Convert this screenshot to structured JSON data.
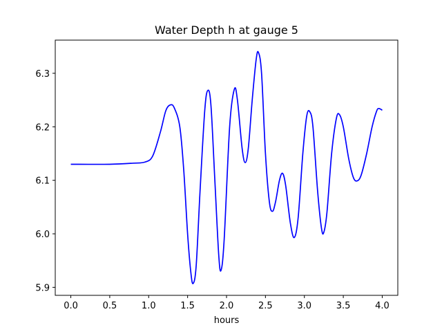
{
  "chart_data": {
    "type": "line",
    "title": "Water Depth h at gauge 5",
    "xlabel": "hours",
    "ylabel": "",
    "xlim": [
      -0.2,
      4.2
    ],
    "ylim": [
      5.885,
      6.362
    ],
    "xticks": [
      0.0,
      0.5,
      1.0,
      1.5,
      2.0,
      2.5,
      3.0,
      3.5,
      4.0
    ],
    "xtick_labels": [
      "0.0",
      "0.5",
      "1.0",
      "1.5",
      "2.0",
      "2.5",
      "3.0",
      "3.5",
      "4.0"
    ],
    "yticks": [
      5.9,
      6.0,
      6.1,
      6.2,
      6.3
    ],
    "ytick_labels": [
      "5.9",
      "6.0",
      "6.1",
      "6.2",
      "6.3"
    ],
    "grid": false,
    "legend": "none",
    "series": [
      {
        "color": "#0000ff",
        "points": [
          [
            0.0,
            6.13
          ],
          [
            0.5,
            6.13
          ],
          [
            0.8,
            6.132
          ],
          [
            0.95,
            6.134
          ],
          [
            1.05,
            6.145
          ],
          [
            1.15,
            6.19
          ],
          [
            1.22,
            6.23
          ],
          [
            1.28,
            6.241
          ],
          [
            1.33,
            6.235
          ],
          [
            1.4,
            6.2
          ],
          [
            1.45,
            6.12
          ],
          [
            1.5,
            6.0
          ],
          [
            1.54,
            5.93
          ],
          [
            1.57,
            5.907
          ],
          [
            1.61,
            5.94
          ],
          [
            1.66,
            6.08
          ],
          [
            1.72,
            6.23
          ],
          [
            1.76,
            6.268
          ],
          [
            1.8,
            6.24
          ],
          [
            1.85,
            6.1
          ],
          [
            1.9,
            5.96
          ],
          [
            1.93,
            5.932
          ],
          [
            1.97,
            5.99
          ],
          [
            2.04,
            6.2
          ],
          [
            2.1,
            6.27
          ],
          [
            2.14,
            6.25
          ],
          [
            2.2,
            6.16
          ],
          [
            2.24,
            6.133
          ],
          [
            2.28,
            6.16
          ],
          [
            2.33,
            6.25
          ],
          [
            2.38,
            6.325
          ],
          [
            2.41,
            6.339
          ],
          [
            2.45,
            6.3
          ],
          [
            2.5,
            6.15
          ],
          [
            2.55,
            6.06
          ],
          [
            2.59,
            6.042
          ],
          [
            2.63,
            6.06
          ],
          [
            2.68,
            6.1
          ],
          [
            2.72,
            6.113
          ],
          [
            2.76,
            6.09
          ],
          [
            2.82,
            6.02
          ],
          [
            2.87,
            5.993
          ],
          [
            2.92,
            6.03
          ],
          [
            2.98,
            6.15
          ],
          [
            3.03,
            6.22
          ],
          [
            3.07,
            6.228
          ],
          [
            3.11,
            6.2
          ],
          [
            3.17,
            6.08
          ],
          [
            3.22,
            6.01
          ],
          [
            3.25,
            6.003
          ],
          [
            3.29,
            6.04
          ],
          [
            3.35,
            6.15
          ],
          [
            3.41,
            6.215
          ],
          [
            3.45,
            6.223
          ],
          [
            3.5,
            6.2
          ],
          [
            3.57,
            6.14
          ],
          [
            3.63,
            6.105
          ],
          [
            3.68,
            6.099
          ],
          [
            3.73,
            6.11
          ],
          [
            3.8,
            6.15
          ],
          [
            3.87,
            6.2
          ],
          [
            3.93,
            6.23
          ],
          [
            3.96,
            6.234
          ],
          [
            4.0,
            6.231
          ]
        ]
      }
    ]
  }
}
